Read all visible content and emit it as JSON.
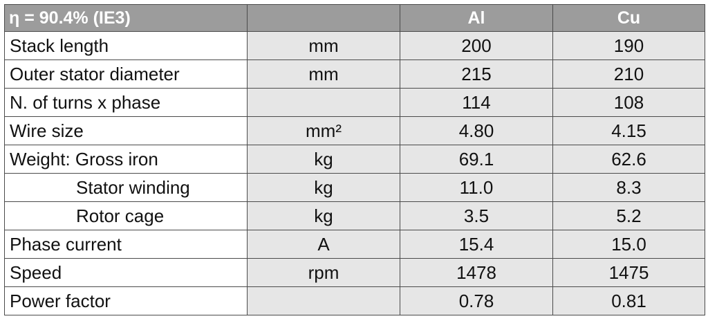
{
  "header": {
    "title": "η = 90.4% (IE3)",
    "unit_col": "",
    "col_al": "Al",
    "col_cu": "Cu"
  },
  "rows": [
    {
      "label": "Stack length",
      "unit": "mm",
      "al": "200",
      "cu": "190"
    },
    {
      "label": "Outer stator diameter",
      "unit": "mm",
      "al": "215",
      "cu": "210"
    },
    {
      "label": "N. of turns x phase",
      "unit": "",
      "al": "114",
      "cu": "108"
    },
    {
      "label": "Wire size",
      "unit": "mm²",
      "al": "4.80",
      "cu": "4.15"
    },
    {
      "label": "Weight: Gross iron",
      "unit": "kg",
      "al": "69.1",
      "cu": "62.6"
    },
    {
      "label": "Stator winding",
      "unit": "kg",
      "al": "11.0",
      "cu": "8.3"
    },
    {
      "label": "Rotor cage",
      "unit": "kg",
      "al": "3.5",
      "cu": "5.2"
    },
    {
      "label": "Phase current",
      "unit": "A",
      "al": "15.4",
      "cu": "15.0"
    },
    {
      "label": "Speed",
      "unit": "rpm",
      "al": "1478",
      "cu": "1475"
    },
    {
      "label": "Power factor",
      "unit": "",
      "al": "0.78",
      "cu": "0.81"
    }
  ],
  "colors": {
    "header_bg": "#9c9c9c",
    "header_text": "#ffffff",
    "data_bg": "#e6e6e6",
    "border": "#4a4a4a"
  }
}
